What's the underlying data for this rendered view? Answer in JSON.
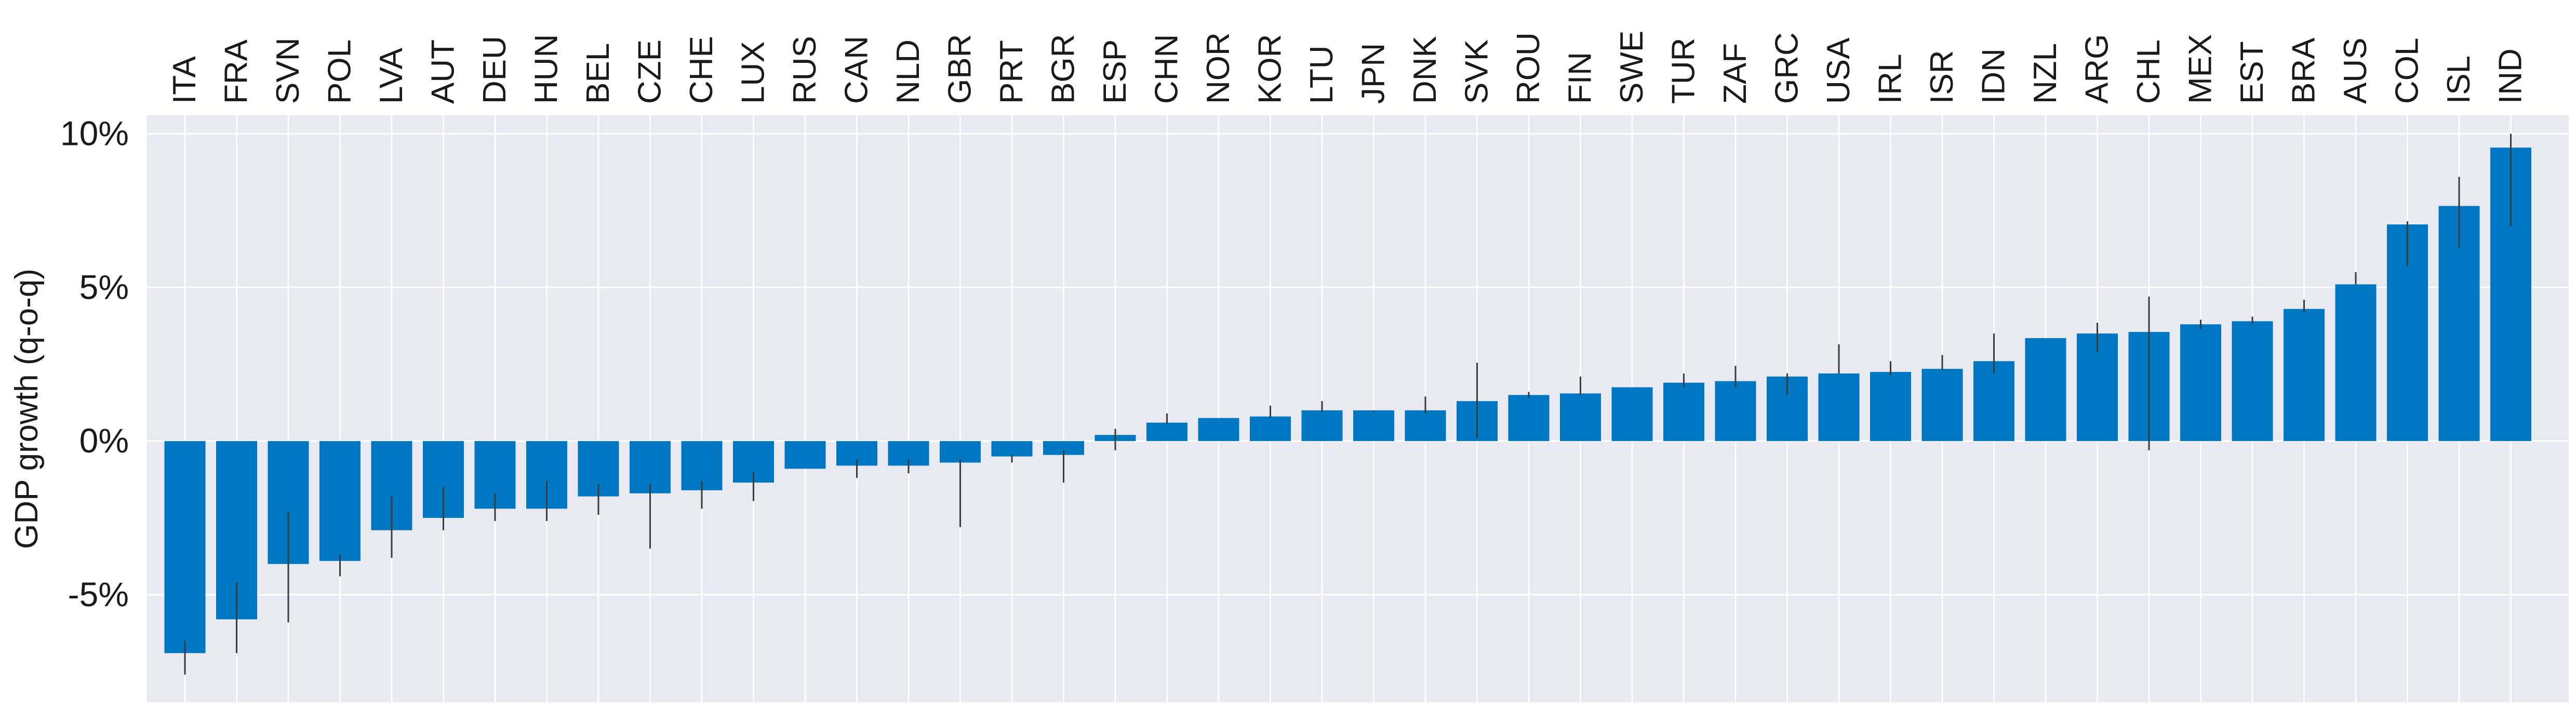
{
  "chart_data": {
    "type": "bar",
    "title": "",
    "xlabel": "",
    "ylabel": "GDP growth (q-o-q)",
    "ylim": [
      -8.5,
      10.6
    ],
    "yticks": [
      -5,
      0,
      5,
      10
    ],
    "ytick_labels": [
      "-5%",
      "0%",
      "5%",
      "10%"
    ],
    "xtick_position": "top",
    "xtick_rotation": 90,
    "grid": true,
    "colors": {
      "bar": "#0077c2",
      "error": "#3b3b3b",
      "background": "#e9e9f2",
      "grid": "#ffffff"
    },
    "categories": [
      "ITA",
      "FRA",
      "SVN",
      "POL",
      "LVA",
      "AUT",
      "DEU",
      "HUN",
      "BEL",
      "CZE",
      "CHE",
      "LUX",
      "RUS",
      "CAN",
      "NLD",
      "GBR",
      "PRT",
      "BGR",
      "ESP",
      "CHN",
      "NOR",
      "KOR",
      "LTU",
      "JPN",
      "DNK",
      "SVK",
      "ROU",
      "FIN",
      "SWE",
      "TUR",
      "ZAF",
      "GRC",
      "USA",
      "IRL",
      "ISR",
      "IDN",
      "NZL",
      "ARG",
      "CHL",
      "MEX",
      "EST",
      "BRA",
      "AUS",
      "COL",
      "ISL",
      "IND"
    ],
    "values": [
      -6.9,
      -5.8,
      -4.0,
      -3.9,
      -2.9,
      -2.5,
      -2.2,
      -2.2,
      -1.8,
      -1.7,
      -1.6,
      -1.35,
      -0.9,
      -0.8,
      -0.8,
      -0.7,
      -0.5,
      -0.45,
      0.2,
      0.6,
      0.75,
      0.8,
      1.0,
      1.0,
      1.0,
      1.3,
      1.5,
      1.55,
      1.75,
      1.9,
      1.95,
      2.1,
      2.2,
      2.25,
      2.35,
      2.6,
      3.35,
      3.5,
      3.55,
      3.8,
      3.9,
      4.3,
      5.1,
      7.05,
      7.65,
      9.55
    ],
    "err_low": [
      -7.6,
      -6.9,
      -5.9,
      -4.4,
      -3.8,
      -2.9,
      -2.6,
      -2.6,
      -2.4,
      -3.5,
      -2.2,
      -1.95,
      -0.9,
      -1.2,
      -1.05,
      -2.8,
      -0.7,
      -1.35,
      -0.3,
      0.55,
      0.75,
      0.75,
      0.95,
      0.95,
      0.9,
      0.1,
      1.4,
      1.5,
      1.75,
      1.75,
      1.75,
      1.5,
      2.2,
      2.15,
      2.3,
      2.2,
      3.35,
      2.9,
      -0.3,
      3.65,
      3.8,
      4.2,
      5.1,
      5.7,
      6.3,
      7.0
    ],
    "err_high": [
      -6.5,
      -4.6,
      -2.3,
      -3.7,
      -1.8,
      -1.5,
      -1.7,
      -1.3,
      -1.4,
      -1.4,
      -1.3,
      -1.0,
      -0.9,
      -0.6,
      -0.6,
      -0.6,
      -0.45,
      -0.3,
      0.4,
      0.9,
      0.75,
      1.15,
      1.3,
      1.0,
      1.45,
      2.55,
      1.6,
      2.1,
      1.75,
      2.2,
      2.45,
      2.2,
      3.15,
      2.6,
      2.8,
      3.5,
      3.35,
      3.85,
      4.7,
      3.95,
      4.05,
      4.6,
      5.5,
      7.15,
      8.6,
      10.0
    ]
  }
}
